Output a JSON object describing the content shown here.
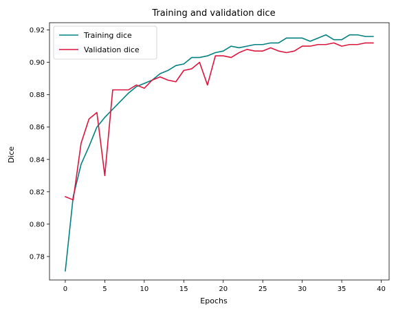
{
  "chart_data": {
    "type": "line",
    "title": "Training and validation dice",
    "xlabel": "Epochs",
    "ylabel": "Dice",
    "xlim": [
      -2,
      41
    ],
    "ylim": [
      0.7655,
      0.9245
    ],
    "xticks": [
      0,
      5,
      10,
      15,
      20,
      25,
      30,
      35,
      40
    ],
    "yticks": [
      0.78,
      0.8,
      0.82,
      0.84,
      0.86,
      0.88,
      0.9,
      0.92
    ],
    "grid": false,
    "legend_position": "top-left",
    "x": [
      0,
      1,
      2,
      3,
      4,
      5,
      6,
      7,
      8,
      9,
      10,
      11,
      12,
      13,
      14,
      15,
      16,
      17,
      18,
      19,
      20,
      21,
      22,
      23,
      24,
      25,
      26,
      27,
      28,
      29,
      30,
      31,
      32,
      33,
      34,
      35,
      36,
      37,
      38,
      39
    ],
    "series": [
      {
        "name": "Training dice",
        "color": "#008080",
        "values": [
          0.771,
          0.817,
          0.837,
          0.848,
          0.86,
          0.866,
          0.871,
          0.876,
          0.881,
          0.885,
          0.887,
          0.889,
          0.893,
          0.895,
          0.898,
          0.899,
          0.903,
          0.903,
          0.904,
          0.906,
          0.907,
          0.91,
          0.909,
          0.91,
          0.911,
          0.911,
          0.912,
          0.912,
          0.915,
          0.915,
          0.915,
          0.913,
          0.915,
          0.917,
          0.914,
          0.914,
          0.917,
          0.917,
          0.916,
          0.916
        ]
      },
      {
        "name": "Validation dice",
        "color": "#dc143c",
        "values": [
          0.817,
          0.815,
          0.85,
          0.865,
          0.869,
          0.83,
          0.883,
          0.883,
          0.883,
          0.886,
          0.884,
          0.889,
          0.891,
          0.889,
          0.888,
          0.895,
          0.896,
          0.9,
          0.886,
          0.904,
          0.904,
          0.903,
          0.906,
          0.908,
          0.907,
          0.907,
          0.909,
          0.907,
          0.906,
          0.907,
          0.91,
          0.91,
          0.911,
          0.911,
          0.912,
          0.91,
          0.911,
          0.911,
          0.912,
          0.912
        ]
      }
    ]
  }
}
